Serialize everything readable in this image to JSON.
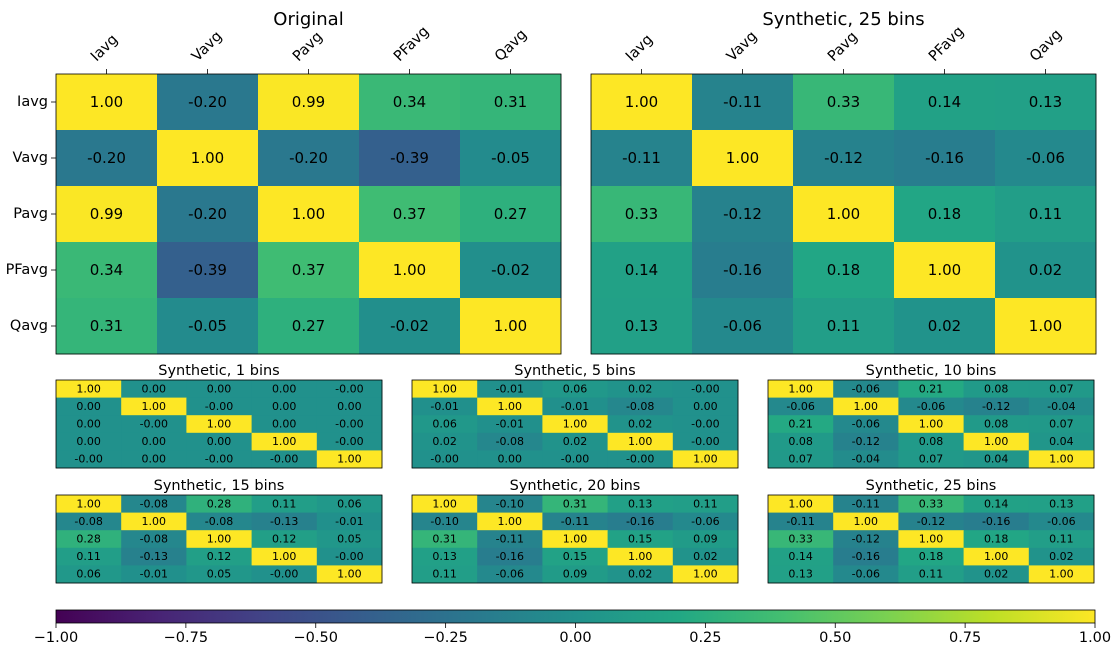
{
  "chart_data": {
    "type": "heatmap",
    "variables": [
      "Iavg",
      "Vavg",
      "Pavg",
      "PFavg",
      "Qavg"
    ],
    "colormap": "viridis",
    "vmin": -1.0,
    "vmax": 1.0,
    "main_panels": [
      {
        "title": "Original",
        "matrix": [
          [
            "1.00",
            "-0.20",
            "0.99",
            "0.34",
            "0.31"
          ],
          [
            "-0.20",
            "1.00",
            "-0.20",
            "-0.39",
            "-0.05"
          ],
          [
            "0.99",
            "-0.20",
            "1.00",
            "0.37",
            "0.27"
          ],
          [
            "0.34",
            "-0.39",
            "0.37",
            "1.00",
            "-0.02"
          ],
          [
            "0.31",
            "-0.05",
            "0.27",
            "-0.02",
            "1.00"
          ]
        ]
      },
      {
        "title": "Synthetic, 25 bins",
        "matrix": [
          [
            "1.00",
            "-0.11",
            "0.33",
            "0.14",
            "0.13"
          ],
          [
            "-0.11",
            "1.00",
            "-0.12",
            "-0.16",
            "-0.06"
          ],
          [
            "0.33",
            "-0.12",
            "1.00",
            "0.18",
            "0.11"
          ],
          [
            "0.14",
            "-0.16",
            "0.18",
            "1.00",
            "0.02"
          ],
          [
            "0.13",
            "-0.06",
            "0.11",
            "0.02",
            "1.00"
          ]
        ]
      }
    ],
    "small_panels": [
      {
        "title": "Synthetic, 1 bins",
        "matrix": [
          [
            "1.00",
            "0.00",
            "0.00",
            "0.00",
            "-0.00"
          ],
          [
            "0.00",
            "1.00",
            "-0.00",
            "0.00",
            "0.00"
          ],
          [
            "0.00",
            "-0.00",
            "1.00",
            "0.00",
            "-0.00"
          ],
          [
            "0.00",
            "0.00",
            "0.00",
            "1.00",
            "-0.00"
          ],
          [
            "-0.00",
            "0.00",
            "-0.00",
            "-0.00",
            "1.00"
          ]
        ]
      },
      {
        "title": "Synthetic, 5 bins",
        "matrix": [
          [
            "1.00",
            "-0.01",
            "0.06",
            "0.02",
            "-0.00"
          ],
          [
            "-0.01",
            "1.00",
            "-0.01",
            "-0.08",
            "0.00"
          ],
          [
            "0.06",
            "-0.01",
            "1.00",
            "0.02",
            "-0.00"
          ],
          [
            "0.02",
            "-0.08",
            "0.02",
            "1.00",
            "-0.00"
          ],
          [
            "-0.00",
            "0.00",
            "-0.00",
            "-0.00",
            "1.00"
          ]
        ]
      },
      {
        "title": "Synthetic, 10 bins",
        "matrix": [
          [
            "1.00",
            "-0.06",
            "0.21",
            "0.08",
            "0.07"
          ],
          [
            "-0.06",
            "1.00",
            "-0.06",
            "-0.12",
            "-0.04"
          ],
          [
            "0.21",
            "-0.06",
            "1.00",
            "0.08",
            "0.07"
          ],
          [
            "0.08",
            "-0.12",
            "0.08",
            "1.00",
            "0.04"
          ],
          [
            "0.07",
            "-0.04",
            "0.07",
            "0.04",
            "1.00"
          ]
        ]
      },
      {
        "title": "Synthetic, 15 bins",
        "matrix": [
          [
            "1.00",
            "-0.08",
            "0.28",
            "0.11",
            "0.06"
          ],
          [
            "-0.08",
            "1.00",
            "-0.08",
            "-0.13",
            "-0.01"
          ],
          [
            "0.28",
            "-0.08",
            "1.00",
            "0.12",
            "0.05"
          ],
          [
            "0.11",
            "-0.13",
            "0.12",
            "1.00",
            "-0.00"
          ],
          [
            "0.06",
            "-0.01",
            "0.05",
            "-0.00",
            "1.00"
          ]
        ]
      },
      {
        "title": "Synthetic, 20 bins",
        "matrix": [
          [
            "1.00",
            "-0.10",
            "0.31",
            "0.13",
            "0.11"
          ],
          [
            "-0.10",
            "1.00",
            "-0.11",
            "-0.16",
            "-0.06"
          ],
          [
            "0.31",
            "-0.11",
            "1.00",
            "0.15",
            "0.09"
          ],
          [
            "0.13",
            "-0.16",
            "0.15",
            "1.00",
            "0.02"
          ],
          [
            "0.11",
            "-0.06",
            "0.09",
            "0.02",
            "1.00"
          ]
        ]
      },
      {
        "title": "Synthetic, 25 bins",
        "matrix": [
          [
            "1.00",
            "-0.11",
            "0.33",
            "0.14",
            "0.13"
          ],
          [
            "-0.11",
            "1.00",
            "-0.12",
            "-0.16",
            "-0.06"
          ],
          [
            "0.33",
            "-0.12",
            "1.00",
            "0.18",
            "0.11"
          ],
          [
            "0.14",
            "-0.16",
            "0.18",
            "1.00",
            "0.02"
          ],
          [
            "0.13",
            "-0.06",
            "0.11",
            "0.02",
            "1.00"
          ]
        ]
      }
    ],
    "colorbar": {
      "orientation": "horizontal",
      "ticks": [
        "−1.00",
        "−0.75",
        "−0.50",
        "−0.25",
        "0.00",
        "0.25",
        "0.50",
        "0.75",
        "1.00"
      ]
    }
  }
}
